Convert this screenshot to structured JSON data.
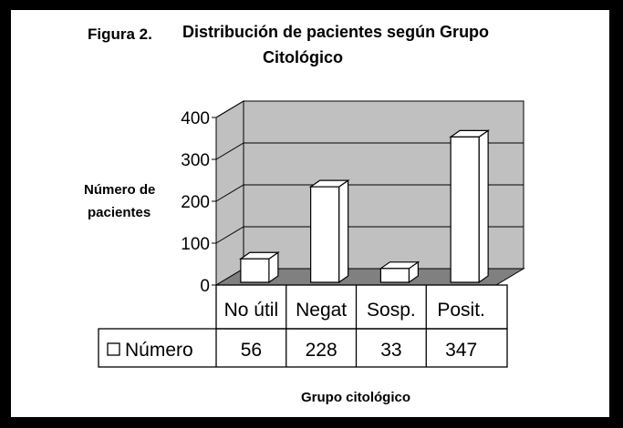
{
  "header": {
    "figure_label": "Figura 2.",
    "title_line1": "Distribución de pacientes según Grupo",
    "title_line2": "Citológico"
  },
  "chart_data": {
    "type": "bar",
    "title": "Distribución de pacientes según Grupo Citológico",
    "categories": [
      "No útil",
      "Negat",
      "Sosp.",
      "Posit."
    ],
    "series": [
      {
        "name": "Número",
        "values": [
          56,
          228,
          33,
          347
        ]
      }
    ],
    "ylabel_lines": [
      "Número de",
      "pacientes"
    ],
    "xlabel": "Grupo citológico",
    "ylim": [
      0,
      400
    ],
    "yticks": [
      0,
      100,
      200,
      300,
      400
    ],
    "grid": true,
    "legend": "data-table-left",
    "colors": {
      "wall": "#c0c0c0",
      "floor": "#808080",
      "bar_front": "#ffffff",
      "bar_top": "#ffffff",
      "bar_side": "#ffffff",
      "outline": "#000000"
    }
  }
}
